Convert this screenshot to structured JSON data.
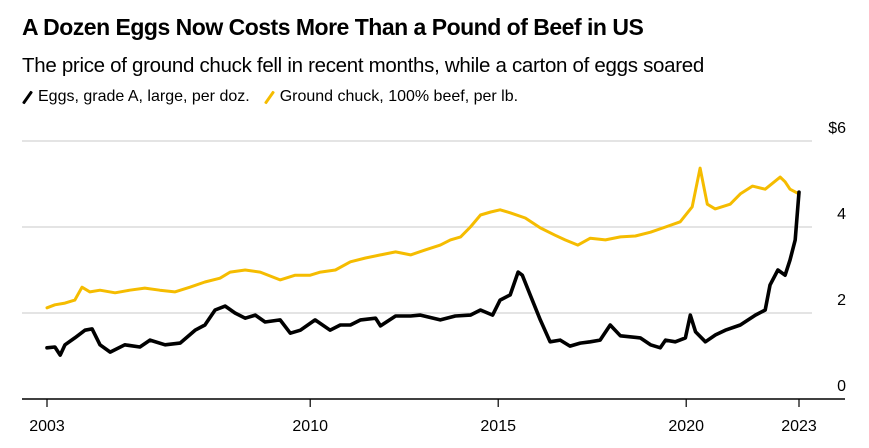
{
  "title": "A Dozen Eggs Now Costs More Than a Pound of Beef in US",
  "subtitle": "The price of ground chuck fell in recent months, while a carton of eggs soared",
  "legend": [
    {
      "label": "Eggs, grade A, large, per doz.",
      "color": "#000000"
    },
    {
      "label": "Ground chuck, 100% beef, per lb.",
      "color": "#F5BC00"
    }
  ],
  "chart_data": {
    "type": "line",
    "title": "A Dozen Eggs Now Costs More Than a Pound of Beef in US",
    "subtitle": "The price of ground chuck fell in recent months, while a carton of eggs soared",
    "xlabel": "",
    "ylabel": "",
    "xlim": [
      2002.35,
      2024.2
    ],
    "ylim": [
      0,
      6
    ],
    "x_ticks": [
      2003,
      2010,
      2015,
      2020,
      2023
    ],
    "x_tick_labels": [
      "2003",
      "2010",
      "2015",
      "2020",
      "2023"
    ],
    "y_ticks": [
      0,
      2,
      4,
      6
    ],
    "y_tick_labels": [
      "0",
      "2",
      "4",
      "$6"
    ],
    "y_axis_position": "right",
    "grid": true,
    "legend_position": "top-left",
    "series": [
      {
        "name": "Eggs, grade A, large, per doz.",
        "color": "#000000",
        "x": [
          2003.0,
          2003.21,
          2003.35,
          2003.48,
          2003.74,
          2004.01,
          2004.2,
          2004.41,
          2004.68,
          2005.07,
          2005.47,
          2005.74,
          2006.14,
          2006.54,
          2006.94,
          2007.2,
          2007.47,
          2007.74,
          2008.0,
          2008.27,
          2008.54,
          2008.8,
          2009.2,
          2009.47,
          2009.74,
          2010.13,
          2010.53,
          2010.8,
          2011.07,
          2011.34,
          2011.74,
          2011.87,
          2012.27,
          2012.67,
          2012.93,
          2013.46,
          2013.86,
          2014.26,
          2014.53,
          2014.85,
          2015.05,
          2015.32,
          2015.53,
          2015.64,
          2015.85,
          2016.12,
          2016.38,
          2016.65,
          2016.91,
          2017.18,
          2017.45,
          2017.71,
          2017.98,
          2018.25,
          2018.78,
          2019.05,
          2019.31,
          2019.45,
          2019.71,
          2019.98,
          2020.11,
          2020.25,
          2020.51,
          2020.78,
          2021.04,
          2021.44,
          2021.84,
          2022.1,
          2022.23,
          2022.44,
          2022.63,
          2022.76,
          2022.9,
          2023.0
        ],
        "y": [
          1.19,
          1.21,
          1.02,
          1.26,
          1.42,
          1.6,
          1.63,
          1.26,
          1.09,
          1.26,
          1.21,
          1.37,
          1.26,
          1.3,
          1.6,
          1.72,
          2.07,
          2.16,
          2.0,
          1.88,
          1.95,
          1.79,
          1.84,
          1.53,
          1.6,
          1.84,
          1.6,
          1.72,
          1.72,
          1.84,
          1.88,
          1.7,
          1.93,
          1.93,
          1.95,
          1.84,
          1.93,
          1.95,
          2.07,
          1.95,
          2.3,
          2.42,
          2.95,
          2.88,
          2.42,
          1.84,
          1.33,
          1.37,
          1.23,
          1.3,
          1.33,
          1.37,
          1.72,
          1.47,
          1.42,
          1.26,
          1.19,
          1.37,
          1.33,
          1.42,
          1.95,
          1.56,
          1.33,
          1.49,
          1.6,
          1.72,
          1.95,
          2.07,
          2.65,
          3.0,
          2.88,
          3.23,
          3.7,
          4.81
        ]
      },
      {
        "name": "Ground chuck, 100% beef, per lb.",
        "color": "#F5BC00",
        "x": [
          2003.0,
          2003.21,
          2003.48,
          2003.74,
          2003.93,
          2004.14,
          2004.41,
          2004.81,
          2005.2,
          2005.6,
          2006.0,
          2006.4,
          2006.8,
          2007.2,
          2007.6,
          2007.87,
          2008.27,
          2008.67,
          2009.2,
          2009.6,
          2010.0,
          2010.27,
          2010.67,
          2011.07,
          2011.47,
          2011.87,
          2012.27,
          2012.67,
          2013.07,
          2013.46,
          2013.73,
          2014.0,
          2014.26,
          2014.53,
          2014.8,
          2015.05,
          2015.32,
          2015.72,
          2016.12,
          2016.51,
          2016.78,
          2017.12,
          2017.45,
          2017.85,
          2018.25,
          2018.65,
          2019.05,
          2019.45,
          2019.84,
          2020.16,
          2020.37,
          2020.56,
          2020.77,
          2021.17,
          2021.44,
          2021.76,
          2022.1,
          2022.5,
          2022.63,
          2022.76,
          2023.0
        ],
        "y": [
          2.12,
          2.19,
          2.23,
          2.3,
          2.6,
          2.49,
          2.53,
          2.47,
          2.53,
          2.58,
          2.53,
          2.49,
          2.6,
          2.72,
          2.81,
          2.95,
          3.0,
          2.95,
          2.77,
          2.88,
          2.88,
          2.95,
          3.0,
          3.19,
          3.28,
          3.35,
          3.42,
          3.35,
          3.47,
          3.58,
          3.7,
          3.77,
          4.0,
          4.28,
          4.35,
          4.4,
          4.33,
          4.21,
          3.98,
          3.81,
          3.7,
          3.58,
          3.74,
          3.7,
          3.77,
          3.79,
          3.88,
          4.0,
          4.12,
          4.47,
          5.37,
          4.53,
          4.42,
          4.53,
          4.77,
          4.95,
          4.88,
          5.16,
          5.05,
          4.88,
          4.77
        ]
      }
    ]
  }
}
